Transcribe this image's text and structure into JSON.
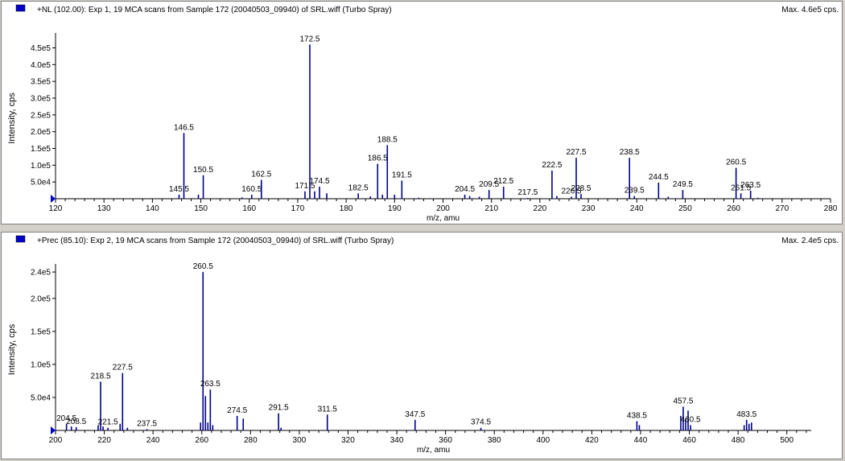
{
  "colors": {
    "peak": "#00008b",
    "axis": "#000000",
    "marker": "#0000cc",
    "background": "#ffffff",
    "frame": "#d4d0c8"
  },
  "chart_data": [
    {
      "type": "bar",
      "title": "+NL (102.00): Exp 1, 19 MCA scans from Sample 172 (20040503_09940) of SRL.wiff (Turbo Spray)",
      "max_label": "Max. 4.6e5 cps.",
      "xlabel": "m/z, amu",
      "ylabel": "Intensity, cps",
      "xlim": [
        120,
        280
      ],
      "ylim": [
        0,
        480000
      ],
      "x_ticks": [
        120,
        130,
        140,
        150,
        160,
        170,
        180,
        190,
        200,
        210,
        220,
        230,
        240,
        250,
        260,
        270,
        280
      ],
      "y_ticks": [
        {
          "value": 50000,
          "label": "5.0e4"
        },
        {
          "value": 100000,
          "label": "1.0e5"
        },
        {
          "value": 150000,
          "label": "1.5e5"
        },
        {
          "value": 200000,
          "label": "2.0e5"
        },
        {
          "value": 250000,
          "label": "2.5e5"
        },
        {
          "value": 300000,
          "label": "3.0e5"
        },
        {
          "value": 350000,
          "label": "3.5e5"
        },
        {
          "value": 400000,
          "label": "4.0e5"
        },
        {
          "value": 450000,
          "label": "4.5e5"
        }
      ],
      "peaks": [
        {
          "x": 145.5,
          "y": 12000,
          "label": "145.5"
        },
        {
          "x": 146.5,
          "y": 196000,
          "label": "146.5"
        },
        {
          "x": 149.5,
          "y": 12000
        },
        {
          "x": 150.5,
          "y": 70000,
          "label": "150.5"
        },
        {
          "x": 158.5,
          "y": 4000
        },
        {
          "x": 160.5,
          "y": 12000,
          "label": "160.5"
        },
        {
          "x": 162.5,
          "y": 56000,
          "label": "162.5"
        },
        {
          "x": 171.5,
          "y": 22000,
          "label": "171.5"
        },
        {
          "x": 172.5,
          "y": 460000,
          "label": "172.5"
        },
        {
          "x": 173.5,
          "y": 22000
        },
        {
          "x": 174.5,
          "y": 36000,
          "label": "174.5"
        },
        {
          "x": 176.0,
          "y": 16000
        },
        {
          "x": 182.5,
          "y": 16000,
          "label": "182.5"
        },
        {
          "x": 185.0,
          "y": 7000
        },
        {
          "x": 186.5,
          "y": 104000,
          "label": "186.5"
        },
        {
          "x": 187.5,
          "y": 12000
        },
        {
          "x": 188.5,
          "y": 160000,
          "label": "188.5"
        },
        {
          "x": 190.0,
          "y": 12000
        },
        {
          "x": 191.5,
          "y": 54000,
          "label": "191.5"
        },
        {
          "x": 195.0,
          "y": 3000
        },
        {
          "x": 204.5,
          "y": 12000,
          "label": "204.5"
        },
        {
          "x": 205.5,
          "y": 8000
        },
        {
          "x": 207.5,
          "y": 6000
        },
        {
          "x": 209.5,
          "y": 26000,
          "label": "209.5"
        },
        {
          "x": 212.5,
          "y": 36000,
          "label": "212.5"
        },
        {
          "x": 217.5,
          "y": 2000,
          "label": "217.5"
        },
        {
          "x": 222.5,
          "y": 84000,
          "label": "222.5"
        },
        {
          "x": 223.5,
          "y": 8000
        },
        {
          "x": 226.5,
          "y": 6000,
          "label": "226.5"
        },
        {
          "x": 227.5,
          "y": 122000,
          "label": "227.5"
        },
        {
          "x": 228.5,
          "y": 14000,
          "label": "228.5"
        },
        {
          "x": 238.5,
          "y": 122000,
          "label": "238.5"
        },
        {
          "x": 239.5,
          "y": 8000,
          "label": "239.5"
        },
        {
          "x": 244.5,
          "y": 48000,
          "label": "244.5"
        },
        {
          "x": 246.5,
          "y": 6000
        },
        {
          "x": 249.5,
          "y": 26000,
          "label": "249.5"
        },
        {
          "x": 260.5,
          "y": 92000,
          "label": "260.5"
        },
        {
          "x": 261.5,
          "y": 16000,
          "label": "261.5"
        },
        {
          "x": 263.5,
          "y": 24000,
          "label": "263.5"
        },
        {
          "x": 265.0,
          "y": 3000
        }
      ]
    },
    {
      "type": "bar",
      "title": "+Prec (85.10): Exp 2, 19 MCA scans from Sample 172 (20040503_09940) of SRL.wiff (Turbo Spray)",
      "max_label": "Max. 2.4e5 cps.",
      "xlabel": "m/z, amu",
      "ylabel": "Intensity, cps",
      "xlim": [
        200,
        510
      ],
      "ylim": [
        0,
        245000
      ],
      "x_ticks": [
        200,
        220,
        240,
        260,
        280,
        300,
        320,
        340,
        360,
        380,
        400,
        420,
        440,
        460,
        480,
        500
      ],
      "y_ticks": [
        {
          "value": 50000,
          "label": "5.0e4"
        },
        {
          "value": 100000,
          "label": "1.0e5"
        },
        {
          "value": 150000,
          "label": "1.5e5"
        },
        {
          "value": 200000,
          "label": "2.0e5"
        },
        {
          "value": 240000,
          "label": "2.4e5"
        }
      ],
      "peaks": [
        {
          "x": 204.5,
          "y": 10000,
          "label": "204.5"
        },
        {
          "x": 206.5,
          "y": 6000
        },
        {
          "x": 208.5,
          "y": 5000,
          "label": "208.5"
        },
        {
          "x": 217.5,
          "y": 8000
        },
        {
          "x": 218.5,
          "y": 74000,
          "label": "218.5"
        },
        {
          "x": 219.5,
          "y": 6000
        },
        {
          "x": 221.5,
          "y": 4000,
          "label": "221.5"
        },
        {
          "x": 226.5,
          "y": 10000
        },
        {
          "x": 227.5,
          "y": 87000,
          "label": "227.5"
        },
        {
          "x": 229.5,
          "y": 4000
        },
        {
          "x": 237.5,
          "y": 2000,
          "label": "237.5"
        },
        {
          "x": 259.5,
          "y": 12000
        },
        {
          "x": 260.5,
          "y": 240000,
          "label": "260.5"
        },
        {
          "x": 261.5,
          "y": 52000
        },
        {
          "x": 262.5,
          "y": 12000
        },
        {
          "x": 263.5,
          "y": 62000,
          "label": "263.5"
        },
        {
          "x": 264.5,
          "y": 8000
        },
        {
          "x": 274.5,
          "y": 22000,
          "label": "274.5"
        },
        {
          "x": 277.0,
          "y": 18000
        },
        {
          "x": 291.5,
          "y": 26000,
          "label": "291.5"
        },
        {
          "x": 292.5,
          "y": 4000
        },
        {
          "x": 311.5,
          "y": 24000,
          "label": "311.5"
        },
        {
          "x": 347.5,
          "y": 16000,
          "label": "347.5"
        },
        {
          "x": 374.5,
          "y": 4000,
          "label": "374.5"
        },
        {
          "x": 438.5,
          "y": 14000,
          "label": "438.5"
        },
        {
          "x": 439.5,
          "y": 8000
        },
        {
          "x": 456.5,
          "y": 22000
        },
        {
          "x": 457.5,
          "y": 36000,
          "label": "457.5"
        },
        {
          "x": 458.5,
          "y": 18000
        },
        {
          "x": 459.5,
          "y": 30000
        },
        {
          "x": 460.5,
          "y": 8000,
          "label": "460.5"
        },
        {
          "x": 482.5,
          "y": 8000
        },
        {
          "x": 483.5,
          "y": 16000,
          "label": "483.5"
        },
        {
          "x": 484.5,
          "y": 10000
        },
        {
          "x": 485.5,
          "y": 12000
        }
      ]
    }
  ]
}
